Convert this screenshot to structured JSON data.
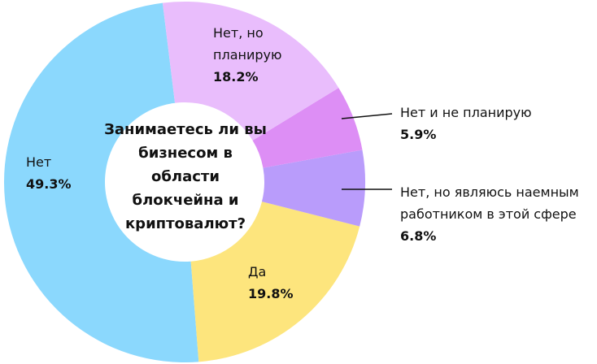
{
  "chart_data": {
    "type": "donut",
    "title": "Занимаетесь ли вы бизнесом в области блокчейна и криптовалют?",
    "categories": [
      "Нет, но планирую",
      "Нет и не планирую",
      "Нет, но являюсь наемным работником в этой сфере",
      "Да",
      "Нет"
    ],
    "values": [
      18.2,
      5.9,
      6.8,
      19.8,
      49.3
    ],
    "value_labels": [
      "18.2%",
      "5.9%",
      "6.8%",
      "19.8%",
      "49.3%"
    ],
    "colors": [
      "#e9bdfc",
      "#dd8ef5",
      "#b99cfb",
      "#fde57d",
      "#8bd8fd"
    ]
  }
}
